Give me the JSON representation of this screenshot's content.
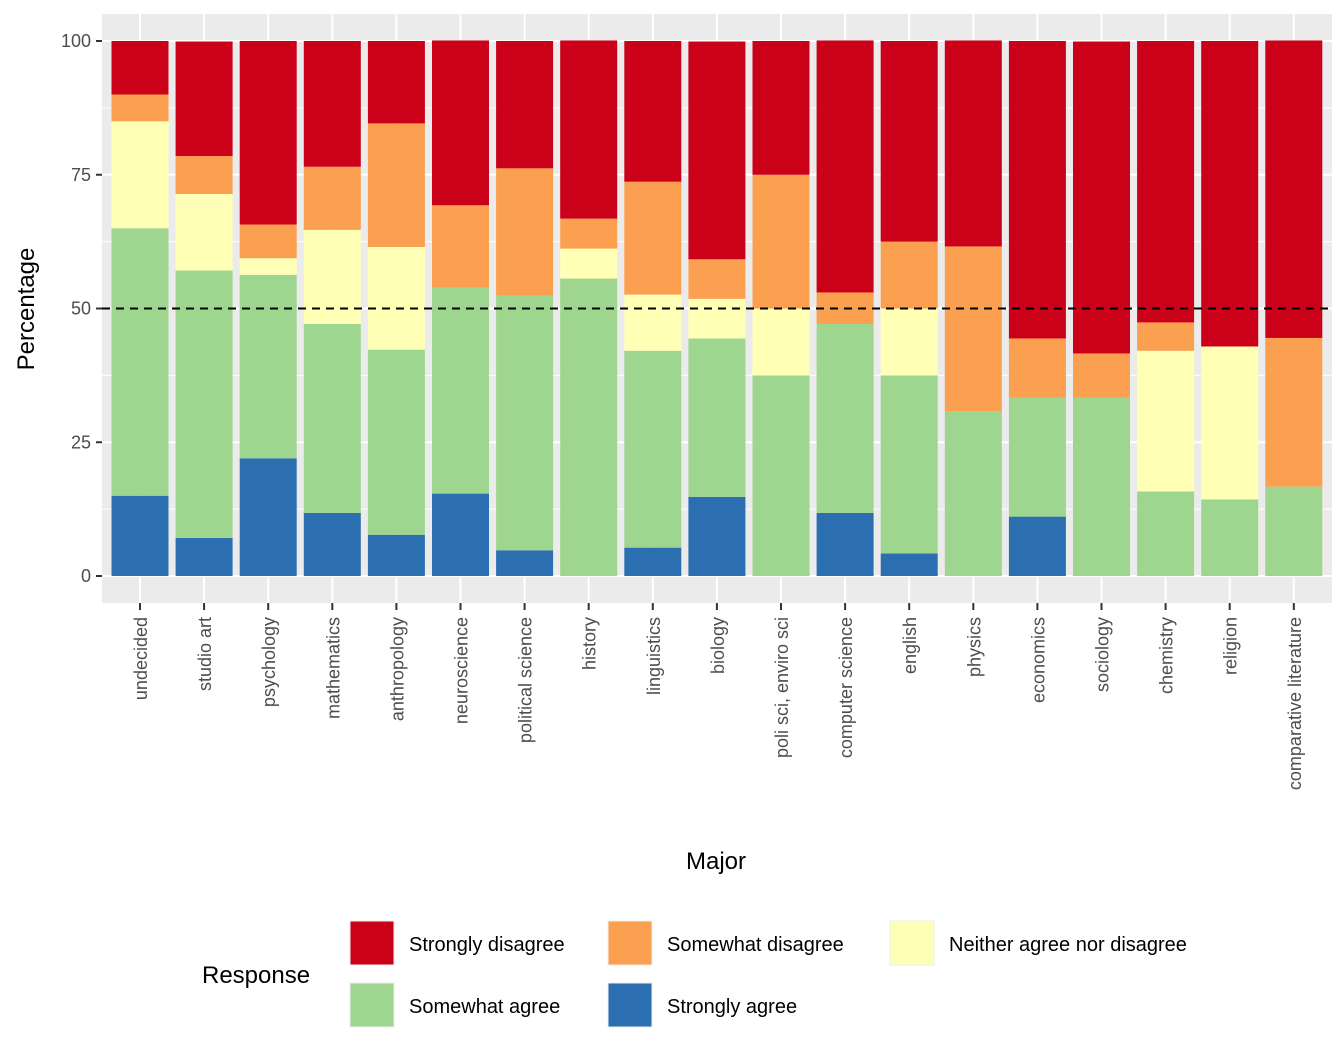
{
  "chart_data": {
    "type": "bar",
    "stacked": true,
    "xlabel": "Major",
    "ylabel": "Percentage",
    "ylim": [
      0,
      100
    ],
    "yticks": [
      0,
      25,
      50,
      75,
      100
    ],
    "reference_line": {
      "y": 50,
      "style": "dashed"
    },
    "categories": [
      "undecided",
      "studio art",
      "psychology",
      "mathematics",
      "anthropology",
      "neuroscience",
      "political science",
      "history",
      "linguistics",
      "biology",
      "poli sci, enviro sci",
      "computer science",
      "english",
      "physics",
      "economics",
      "sociology",
      "chemistry",
      "religion",
      "comparative literature"
    ],
    "legend": {
      "title": "Response",
      "position": "bottom"
    },
    "series": [
      {
        "name": "Strongly agree",
        "color": "#2B6FB0",
        "values": [
          15,
          7.1,
          22,
          11.8,
          7.7,
          15.4,
          4.8,
          0,
          5.3,
          14.8,
          0,
          11.8,
          4.2,
          0,
          11.1,
          0,
          0,
          0,
          0
        ]
      },
      {
        "name": "Somewhat agree",
        "color": "#9ED68F",
        "values": [
          50,
          50,
          34.3,
          35.3,
          34.6,
          38.5,
          47.6,
          55.6,
          36.8,
          29.6,
          37.5,
          35.3,
          33.3,
          30.8,
          22.2,
          33.3,
          15.8,
          14.3,
          16.7
        ]
      },
      {
        "name": "Neither agree nor disagree",
        "color": "#FFFFB5",
        "values": [
          20,
          14.3,
          3.1,
          17.6,
          19.2,
          0,
          0,
          5.6,
          10.5,
          7.4,
          12.5,
          0,
          12.5,
          0,
          0,
          0,
          26.3,
          28.6,
          0
        ]
      },
      {
        "name": "Somewhat disagree",
        "color": "#FBA050",
        "values": [
          5,
          7.1,
          6.3,
          11.8,
          23.1,
          15.4,
          23.8,
          5.6,
          21.1,
          7.4,
          25,
          5.9,
          12.5,
          30.8,
          11.1,
          8.3,
          5.3,
          0,
          27.8
        ]
      },
      {
        "name": "Strongly disagree",
        "color": "#CB0019",
        "values": [
          10,
          21.4,
          34.3,
          23.5,
          15.4,
          30.8,
          23.8,
          33.3,
          26.3,
          40.7,
          25,
          47.1,
          37.5,
          38.5,
          55.6,
          58.3,
          52.6,
          57.1,
          55.6
        ]
      }
    ],
    "legend_order": [
      "Strongly disagree",
      "Somewhat disagree",
      "Neither agree nor disagree",
      "Somewhat agree",
      "Strongly agree"
    ]
  }
}
